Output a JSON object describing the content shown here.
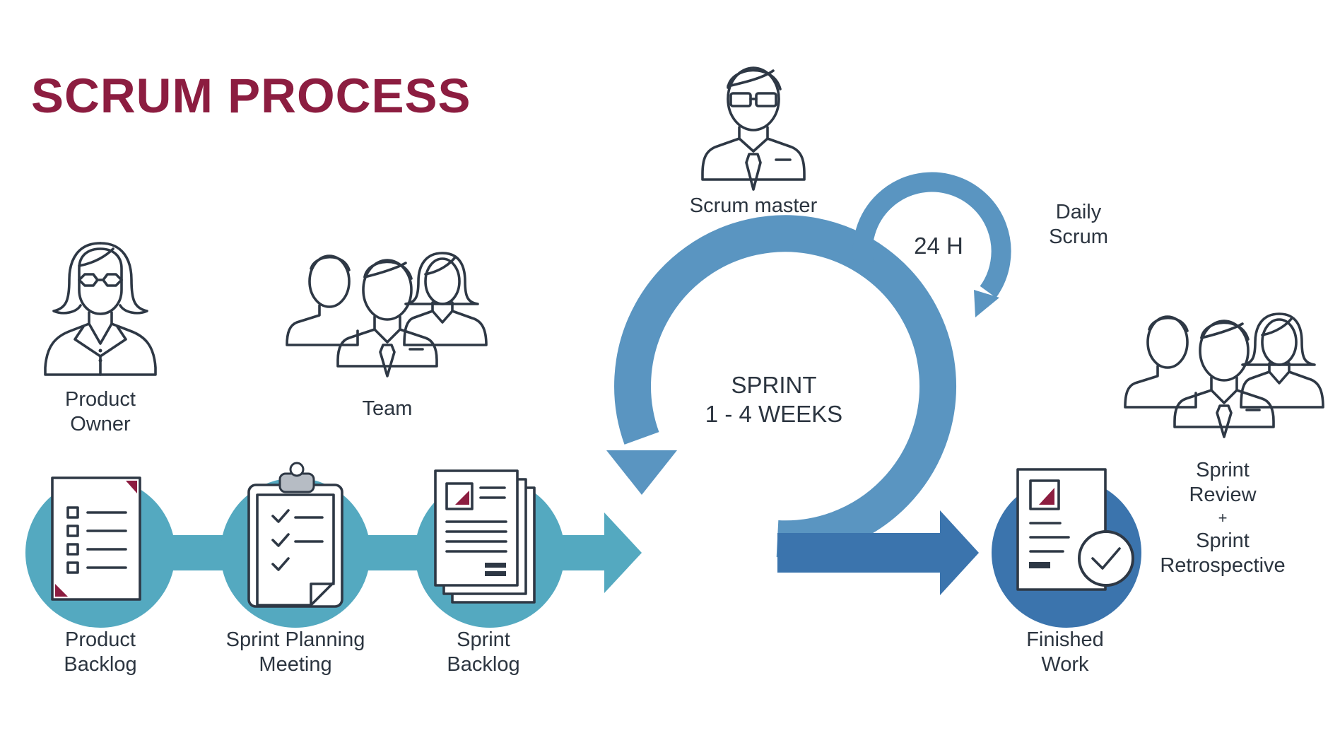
{
  "title": "SCRUM PROCESS",
  "colors": {
    "title": "#8c1d40",
    "text": "#2c3540",
    "teal": "#54a9c0",
    "cycle_blue": "#5a95c1",
    "dark_blue": "#3b74ad",
    "accent_red": "#8c1d40"
  },
  "roles": {
    "product_owner": {
      "line1": "Product",
      "line2": "Owner",
      "icon": "woman-icon"
    },
    "team": {
      "label": "Team",
      "icon": "team-icon"
    },
    "scrum_master": {
      "label": "Scrum master",
      "icon": "man-with-glasses-icon"
    },
    "review_team_icon": "team-icon"
  },
  "steps": {
    "product_backlog": {
      "line1": "Product",
      "line2": "Backlog",
      "icon": "list-document-icon"
    },
    "sprint_planning": {
      "line1": "Sprint Planning",
      "line2": "Meeting",
      "icon": "clipboard-checklist-icon"
    },
    "sprint_backlog": {
      "line1": "Sprint",
      "line2": "Backlog",
      "icon": "document-stack-icon"
    },
    "finished_work": {
      "line1": "Finished",
      "line2": "Work",
      "icon": "checked-document-icon"
    }
  },
  "sprint": {
    "line1": "SPRINT",
    "line2": "1 - 4 WEEKS"
  },
  "daily": {
    "cycle": "24 H",
    "line1": "Daily",
    "line2": "Scrum"
  },
  "review": {
    "line1": "Sprint",
    "line2": "Review",
    "line3": "+",
    "line4": "Sprint",
    "line5": "Retrospective"
  }
}
